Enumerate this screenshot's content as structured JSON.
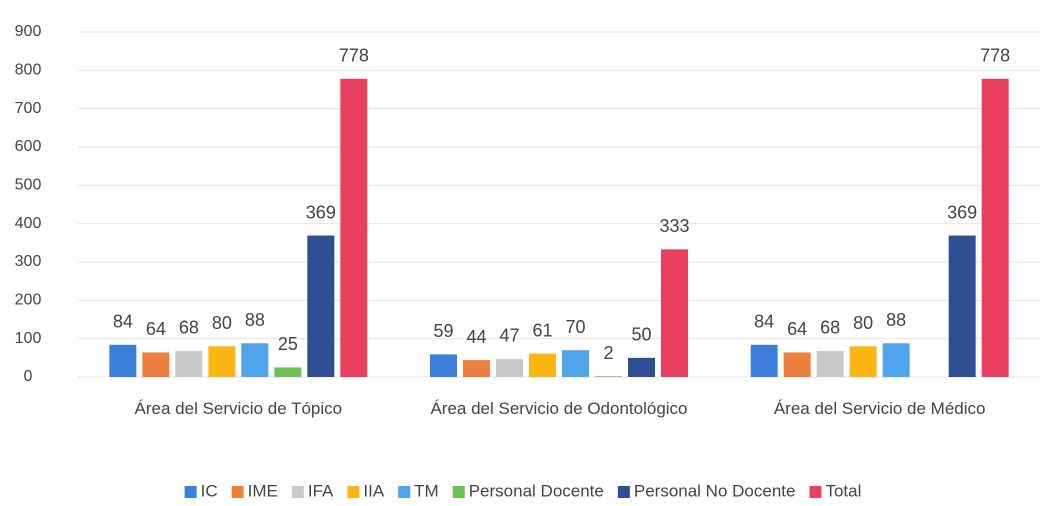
{
  "chart_data": {
    "type": "bar",
    "categories": [
      "Área del Servicio de Tópico",
      "Área del Servicio de Odontológico",
      "Área del Servicio de Médico"
    ],
    "series": [
      {
        "name": "IC",
        "color": "#3d7fdc",
        "values": [
          84,
          59,
          84
        ]
      },
      {
        "name": "IME",
        "color": "#ee8040",
        "values": [
          64,
          44,
          64
        ]
      },
      {
        "name": "IFA",
        "color": "#c9c9c9",
        "values": [
          68,
          47,
          68
        ]
      },
      {
        "name": "IIA",
        "color": "#fbb614",
        "values": [
          80,
          61,
          80
        ]
      },
      {
        "name": "TM",
        "color": "#50a4ec",
        "values": [
          88,
          70,
          88
        ]
      },
      {
        "name": "Personal Docente",
        "color": "#6cc255",
        "values": [
          25,
          2,
          null
        ]
      },
      {
        "name": "Personal No Docente",
        "color": "#2e4f94",
        "values": [
          369,
          50,
          369
        ]
      },
      {
        "name": "Total",
        "color": "#ea3f5e",
        "values": [
          778,
          333,
          778
        ]
      }
    ],
    "ylim": [
      0,
      900
    ],
    "yticks": [
      0,
      100,
      200,
      300,
      400,
      500,
      600,
      700,
      800,
      900
    ],
    "grid": true,
    "legend": "bottom"
  }
}
